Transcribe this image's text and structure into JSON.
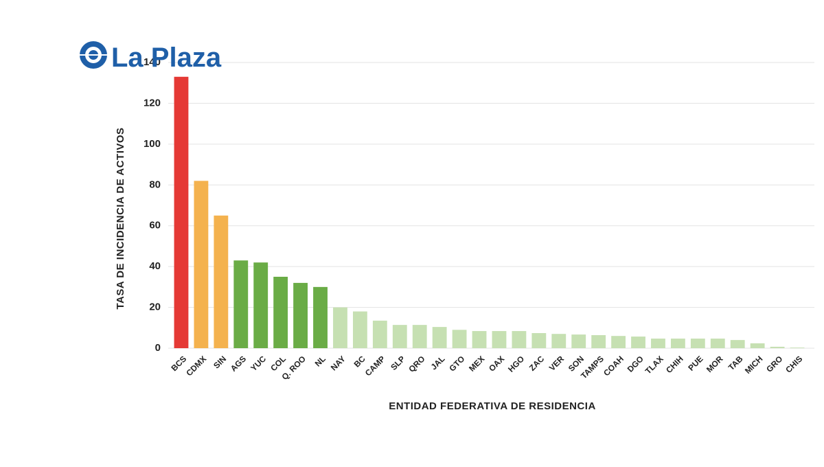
{
  "logo": "La Plaza",
  "chart_data": {
    "type": "bar",
    "x_label": "ENTIDAD FEDERATIVA DE RESIDENCIA",
    "y_label": "TASA DE INCIDENCIA DE ACTIVOS",
    "categories": [
      "BCS",
      "CDMX",
      "SIN",
      "AGS",
      "YUC",
      "COL",
      "Q. ROO",
      "NL",
      "NAY",
      "BC",
      "CAMP",
      "SLP",
      "QRO",
      "JAL",
      "GTO",
      "MEX",
      "OAX",
      "HGO",
      "ZAC",
      "VER",
      "SON",
      "TAMPS",
      "COAH",
      "DGO",
      "TLAX",
      "CHIH",
      "PUE",
      "MOR",
      "TAB",
      "MICH",
      "GRO",
      "CHIS"
    ],
    "values": [
      133,
      82,
      65,
      43,
      42,
      35,
      32,
      30,
      20,
      18,
      13.5,
      11.4,
      11.4,
      10.4,
      9,
      8.4,
      8.4,
      8.4,
      7.4,
      7,
      6.7,
      6.4,
      6,
      5.7,
      4.7,
      4.7,
      4.7,
      4.7,
      4,
      2.4,
      0.7,
      0.3
    ],
    "colors": [
      "#e53935",
      "#f4b24e",
      "#f4b24e",
      "#6aac46",
      "#6aac46",
      "#6aac46",
      "#6aac46",
      "#6aac46",
      "#c6e0b2",
      "#c6e0b2",
      "#c6e0b2",
      "#c6e0b2",
      "#c6e0b2",
      "#c6e0b2",
      "#c6e0b2",
      "#c6e0b2",
      "#c6e0b2",
      "#c6e0b2",
      "#c6e0b2",
      "#c6e0b2",
      "#c6e0b2",
      "#c6e0b2",
      "#c6e0b2",
      "#c6e0b2",
      "#c6e0b2",
      "#c6e0b2",
      "#c6e0b2",
      "#c6e0b2",
      "#c6e0b2",
      "#c6e0b2",
      "#c6e0b2",
      "#c6e0b2"
    ],
    "ylim": [
      0,
      140
    ],
    "yticks": [
      0,
      20,
      40,
      60,
      80,
      100,
      120,
      140
    ],
    "grid": true
  }
}
